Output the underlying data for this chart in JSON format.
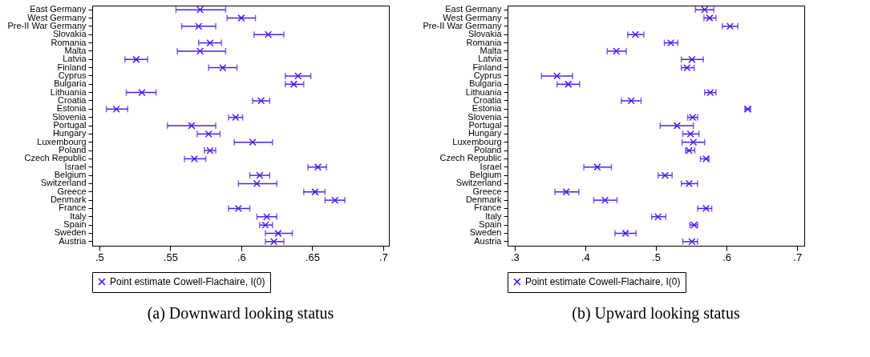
{
  "chart_data": [
    {
      "type": "scatter",
      "orientation": "horizontal",
      "title": "(a) Downward looking status",
      "legend": "bottom",
      "marker": "cross",
      "grid": false,
      "categories": [
        "East Germany",
        "West Germany",
        "Pre-II War Germany",
        "Slovakia",
        "Romania",
        "Malta",
        "Latvia",
        "Finland",
        "Cyprus",
        "Bulgaria",
        "Lithuania",
        "Croatia",
        "Estonia",
        "Slovenia",
        "Portugal",
        "Hungary",
        "Luxembourg",
        "Poland",
        "Czech Republic",
        "Israel",
        "Belgium",
        "Switzerland",
        "Greece",
        "Denmark",
        "France",
        "Italy",
        "Spain",
        "Sweden",
        "Austria"
      ],
      "xlim": [
        0.495,
        0.704
      ],
      "xticks": [
        {
          "value": 0.5,
          "label": ".5"
        },
        {
          "value": 0.55,
          "label": ".55"
        },
        {
          "value": 0.6,
          "label": ".6"
        },
        {
          "value": 0.65,
          "label": ".65"
        },
        {
          "value": 0.7,
          "label": ".7"
        }
      ],
      "series": [
        {
          "name": "Point estimate Cowell-Flachaire, I(0)",
          "color": "#4b1ffa",
          "values": [
            0.571,
            0.6,
            0.57,
            0.619,
            0.578,
            0.571,
            0.526,
            0.587,
            0.64,
            0.637,
            0.53,
            0.614,
            0.512,
            0.596,
            0.565,
            0.577,
            0.608,
            0.578,
            0.567,
            0.654,
            0.613,
            0.611,
            0.652,
            0.666,
            0.598,
            0.618,
            0.617,
            0.626,
            0.623
          ],
          "errors": [
            [
              0.554,
              0.589
            ],
            [
              0.59,
              0.61
            ],
            [
              0.558,
              0.582
            ],
            [
              0.609,
              0.63
            ],
            [
              0.57,
              0.586
            ],
            [
              0.555,
              0.589
            ],
            [
              0.518,
              0.534
            ],
            [
              0.577,
              0.597
            ],
            [
              0.631,
              0.649
            ],
            [
              0.631,
              0.644
            ],
            [
              0.519,
              0.54
            ],
            [
              0.608,
              0.62
            ],
            [
              0.505,
              0.52
            ],
            [
              0.591,
              0.601
            ],
            [
              0.548,
              0.582
            ],
            [
              0.569,
              0.585
            ],
            [
              0.595,
              0.622
            ],
            [
              0.574,
              0.582
            ],
            [
              0.56,
              0.575
            ],
            [
              0.647,
              0.66
            ],
            [
              0.606,
              0.62
            ],
            [
              0.598,
              0.625
            ],
            [
              0.644,
              0.659
            ],
            [
              0.659,
              0.673
            ],
            [
              0.591,
              0.606
            ],
            [
              0.611,
              0.625
            ],
            [
              0.613,
              0.622
            ],
            [
              0.617,
              0.636
            ],
            [
              0.617,
              0.63
            ]
          ]
        }
      ]
    },
    {
      "type": "scatter",
      "orientation": "horizontal",
      "title": "(b) Upward looking status",
      "legend": "bottom",
      "marker": "cross",
      "grid": false,
      "categories": [
        "East Germany",
        "West Germany",
        "Pre-II War Germany",
        "Slovakia",
        "Romania",
        "Malta",
        "Latvia",
        "Finland",
        "Cyprus",
        "Bulgaria",
        "Lithuania",
        "Croatia",
        "Estonia",
        "Slovenia",
        "Portugal",
        "Hungary",
        "Luxembourg",
        "Poland",
        "Czech Republic",
        "Israel",
        "Belgium",
        "Switzerland",
        "Greece",
        "Denmark",
        "France",
        "Italy",
        "Spain",
        "Sweden",
        "Austria"
      ],
      "xlim": [
        0.29,
        0.71
      ],
      "xticks": [
        {
          "value": 0.3,
          "label": ".3"
        },
        {
          "value": 0.4,
          "label": ".4"
        },
        {
          "value": 0.5,
          "label": ".5"
        },
        {
          "value": 0.6,
          "label": ".6"
        },
        {
          "value": 0.7,
          "label": ".7"
        }
      ],
      "series": [
        {
          "name": "Point estimate Cowell-Flachaire, I(0)",
          "color": "#4b1ffa",
          "values": [
            0.569,
            0.576,
            0.605,
            0.471,
            0.521,
            0.444,
            0.551,
            0.544,
            0.36,
            0.376,
            0.577,
            0.465,
            0.63,
            0.552,
            0.53,
            0.549,
            0.553,
            0.547,
            0.571,
            0.417,
            0.513,
            0.547,
            0.373,
            0.428,
            0.571,
            0.503,
            0.554,
            0.457,
            0.551
          ],
          "errors": [
            [
              0.556,
              0.582
            ],
            [
              0.568,
              0.585
            ],
            [
              0.594,
              0.616
            ],
            [
              0.46,
              0.483
            ],
            [
              0.512,
              0.531
            ],
            [
              0.431,
              0.458
            ],
            [
              0.536,
              0.567
            ],
            [
              0.536,
              0.554
            ],
            [
              0.338,
              0.382
            ],
            [
              0.36,
              0.392
            ],
            [
              0.569,
              0.585
            ],
            [
              0.451,
              0.479
            ],
            [
              0.626,
              0.634
            ],
            [
              0.545,
              0.559
            ],
            [
              0.506,
              0.553
            ],
            [
              0.538,
              0.561
            ],
            [
              0.537,
              0.569
            ],
            [
              0.542,
              0.555
            ],
            [
              0.563,
              0.575
            ],
            [
              0.398,
              0.437
            ],
            [
              0.503,
              0.523
            ],
            [
              0.536,
              0.559
            ],
            [
              0.357,
              0.391
            ],
            [
              0.412,
              0.445
            ],
            [
              0.559,
              0.579
            ],
            [
              0.494,
              0.514
            ],
            [
              0.548,
              0.559
            ],
            [
              0.442,
              0.472
            ],
            [
              0.538,
              0.559
            ]
          ]
        }
      ]
    }
  ]
}
